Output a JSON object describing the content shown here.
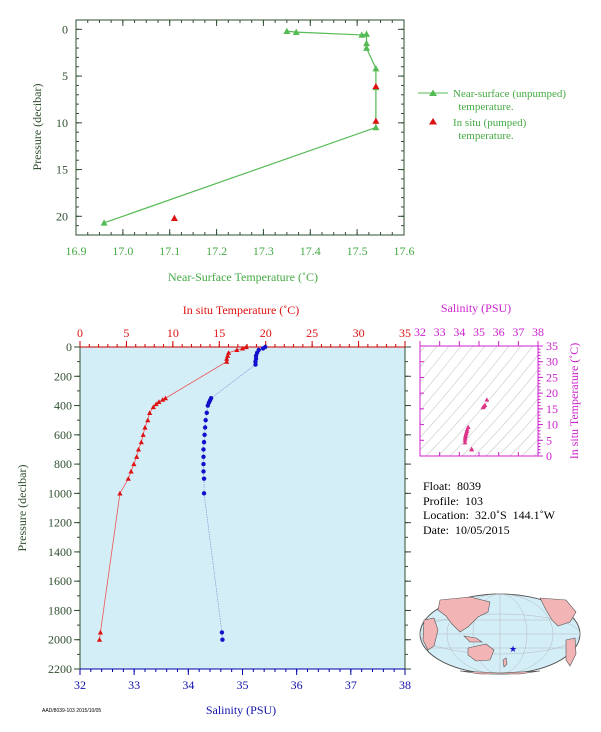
{
  "top_chart": {
    "xlabel": "Near-Surface Temperature (˚C)",
    "ylabel": "Pressure (decibar)",
    "xlim": [
      16.9,
      17.6
    ],
    "ylim": [
      22,
      -1
    ],
    "xticks": [
      "16.9",
      "17.0",
      "17.1",
      "17.2",
      "17.3",
      "17.4",
      "17.5",
      "17.6"
    ],
    "yticks": [
      "0",
      "5",
      "10",
      "15",
      "20"
    ],
    "legend": {
      "near_surface_line1": "Near-surface (unpumped)",
      "near_surface_line2": "temperature.",
      "in_situ_line1": "In situ (pumped)",
      "in_situ_line2": "temperature."
    },
    "colors": {
      "near_surface": "#55bb55",
      "in_situ": "#dd1111",
      "axis_text": "#2f4f2f"
    }
  },
  "bottom_chart": {
    "top_xlabel": "In situ Temperature (˚C)",
    "bottom_xlabel": "Salinity (PSU)",
    "ylabel": "Pressure (decibar)",
    "temp_ticks": [
      "0",
      "5",
      "10",
      "15",
      "20",
      "25",
      "30",
      "35"
    ],
    "sal_ticks": [
      "32",
      "33",
      "34",
      "35",
      "36",
      "37",
      "38"
    ],
    "p_ticks": [
      "0",
      "200",
      "400",
      "600",
      "800",
      "1000",
      "1200",
      "1400",
      "1600",
      "1800",
      "2000",
      "2200"
    ],
    "colors": {
      "temperature": "#dd1111",
      "salinity": "#1111cc",
      "background": "#d4eef8"
    }
  },
  "ts_chart": {
    "xlabel": "Salinity (PSU)",
    "ylabel": "In situ Temperature (˚C)",
    "sal_ticks": [
      "32",
      "33",
      "34",
      "35",
      "36",
      "37",
      "38"
    ],
    "temp_ticks": [
      "0",
      "5",
      "10",
      "15",
      "20",
      "25",
      "30",
      "35"
    ],
    "colors": {
      "axis": "#cc22cc",
      "points": "#dd3388"
    }
  },
  "info": {
    "float": "Float:  8039",
    "profile": "Profile:  103",
    "location": "Location:  32.0˚S  144.1˚W",
    "date": "Date:  10/05/2015"
  },
  "footer_code": "AAD/8039-103  2015/10/05",
  "chart_data": [
    {
      "type": "line",
      "title": "",
      "xlabel": "Near-Surface Temperature (˚C)",
      "ylabel": "Pressure (decibar)",
      "xlim": [
        16.9,
        17.6
      ],
      "ylim": [
        22,
        -1
      ],
      "series": [
        {
          "name": "Near-surface (unpumped) temperature.",
          "points": [
            [
              17.35,
              0.2
            ],
            [
              17.37,
              0.3
            ],
            [
              17.51,
              0.6
            ],
            [
              17.52,
              0.5
            ],
            [
              17.52,
              1.5
            ],
            [
              17.52,
              2.0
            ],
            [
              17.54,
              4.2
            ],
            [
              17.54,
              6.2
            ],
            [
              17.54,
              10.5
            ],
            [
              16.96,
              20.7
            ]
          ]
        },
        {
          "name": "In situ (pumped) temperature.",
          "points": [
            [
              17.54,
              6.1
            ],
            [
              17.54,
              9.8
            ],
            [
              17.11,
              20.2
            ]
          ]
        }
      ]
    },
    {
      "type": "line",
      "title": "",
      "xlabel_top": "In situ Temperature (˚C)",
      "xlabel_bottom": "Salinity (PSU)",
      "ylabel": "Pressure (decibar)",
      "temperature_xlim": [
        0,
        35
      ],
      "salinity_xlim": [
        32,
        38
      ],
      "ylim": [
        2200,
        0
      ],
      "series": [
        {
          "name": "In situ Temperature (˚C)",
          "points": [
            [
              17.9,
              0
            ],
            [
              17.5,
              10
            ],
            [
              16.9,
              20
            ],
            [
              16.0,
              40
            ],
            [
              15.9,
              60
            ],
            [
              15.8,
              80
            ],
            [
              15.8,
              100
            ],
            [
              9.2,
              350
            ],
            [
              8.9,
              360
            ],
            [
              8.5,
              375
            ],
            [
              8.2,
              390
            ],
            [
              7.9,
              410
            ],
            [
              7.5,
              450
            ],
            [
              7.3,
              500
            ],
            [
              7.0,
              550
            ],
            [
              6.8,
              600
            ],
            [
              6.6,
              650
            ],
            [
              6.3,
              700
            ],
            [
              6.1,
              750
            ],
            [
              5.8,
              800
            ],
            [
              5.5,
              850
            ],
            [
              5.2,
              900
            ],
            [
              4.3,
              1000
            ],
            [
              2.2,
              1950
            ],
            [
              2.1,
              2000
            ]
          ]
        },
        {
          "name": "Salinity (PSU)",
          "points": [
            [
              35.42,
              0
            ],
            [
              35.38,
              10
            ],
            [
              35.3,
              20
            ],
            [
              35.27,
              40
            ],
            [
              35.25,
              60
            ],
            [
              35.25,
              80
            ],
            [
              35.24,
              100
            ],
            [
              35.24,
              120
            ],
            [
              34.42,
              350
            ],
            [
              34.4,
              365
            ],
            [
              34.38,
              380
            ],
            [
              34.36,
              400
            ],
            [
              34.34,
              450
            ],
            [
              34.32,
              500
            ],
            [
              34.31,
              550
            ],
            [
              34.3,
              600
            ],
            [
              34.29,
              650
            ],
            [
              34.28,
              700
            ],
            [
              34.28,
              750
            ],
            [
              34.28,
              800
            ],
            [
              34.28,
              850
            ],
            [
              34.29,
              900
            ],
            [
              34.29,
              1000
            ],
            [
              34.62,
              1950
            ],
            [
              34.63,
              2000
            ]
          ]
        }
      ]
    },
    {
      "type": "scatter",
      "title": "",
      "xlabel": "Salinity (PSU)",
      "ylabel": "In situ Temperature (˚C)",
      "xlim": [
        32,
        38
      ],
      "ylim": [
        0,
        35
      ],
      "points": [
        [
          35.4,
          17.9
        ],
        [
          35.3,
          16.2
        ],
        [
          35.25,
          15.8
        ],
        [
          35.2,
          15.5
        ],
        [
          34.45,
          9.2
        ],
        [
          34.4,
          8.5
        ],
        [
          34.38,
          7.9
        ],
        [
          34.35,
          7.3
        ],
        [
          34.33,
          6.8
        ],
        [
          34.31,
          6.3
        ],
        [
          34.3,
          5.8
        ],
        [
          34.29,
          5.2
        ],
        [
          34.29,
          4.3
        ],
        [
          34.63,
          2.2
        ],
        [
          34.62,
          2.1
        ]
      ]
    }
  ]
}
